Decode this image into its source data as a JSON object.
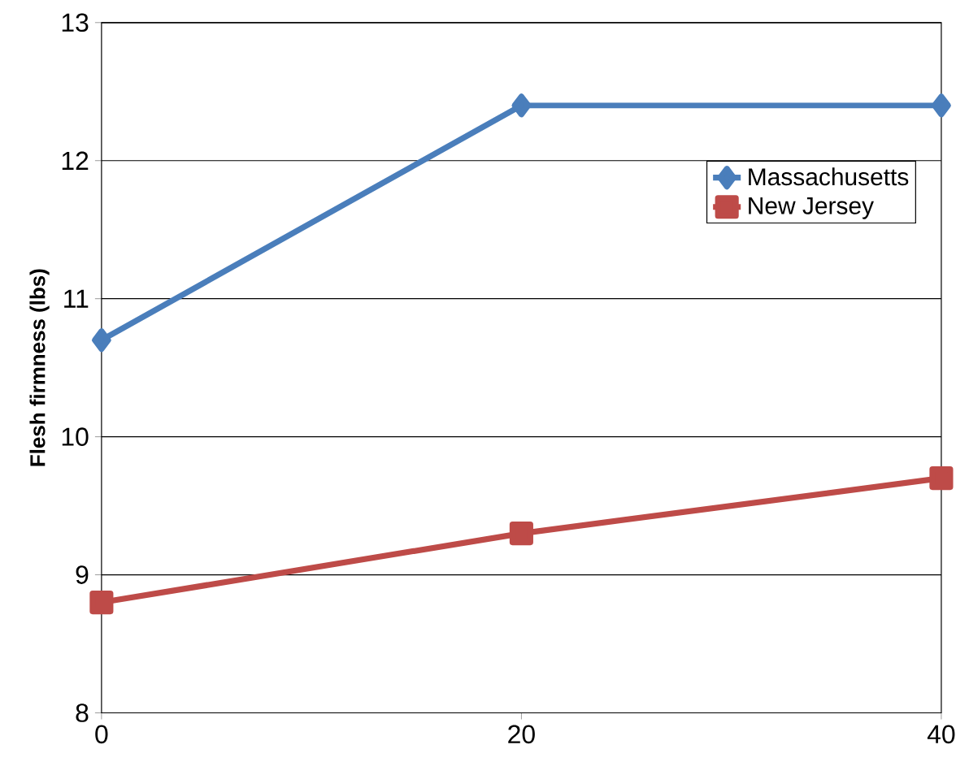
{
  "chart_data": {
    "type": "line",
    "ylabel": "Flesh firmness (lbs)",
    "x": [
      0,
      20,
      40
    ],
    "xlim": [
      0,
      40
    ],
    "xticks": [
      0,
      20,
      40
    ],
    "ylim": [
      8,
      13
    ],
    "yticks": [
      8,
      9,
      10,
      11,
      12,
      13
    ],
    "grid": "y",
    "legend": "top right",
    "series": [
      {
        "name": "Massachusetts",
        "color": "#4a7ebb",
        "marker": "diamond",
        "values": [
          10.7,
          12.4,
          12.4
        ]
      },
      {
        "name": "New Jersey",
        "color": "#be4b48",
        "marker": "square",
        "values": [
          8.8,
          9.3,
          9.7
        ]
      }
    ]
  }
}
